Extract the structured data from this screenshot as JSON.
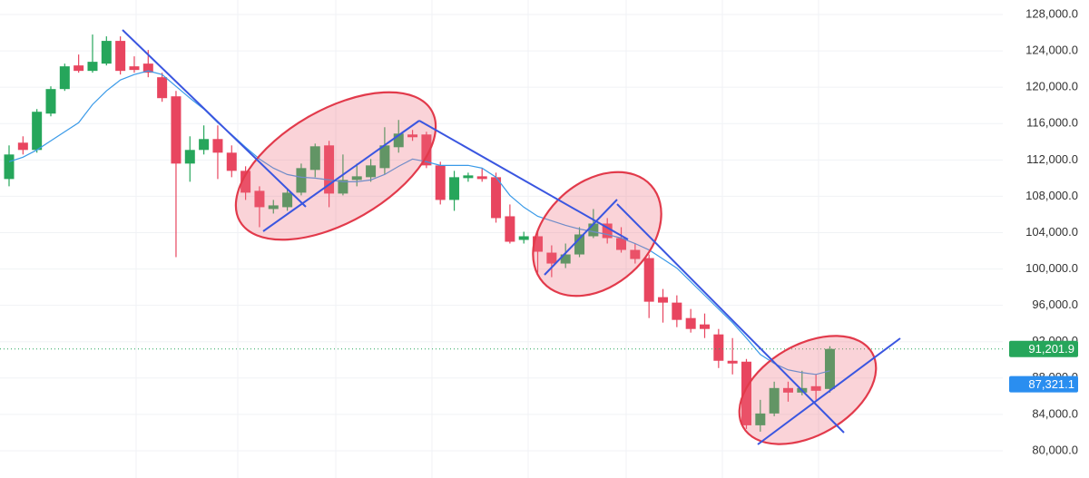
{
  "chart_data": {
    "type": "candlestick",
    "ylim": [
      77000,
      129600
    ],
    "yticks": [
      {
        "value": 80000,
        "label": "80,000.0"
      },
      {
        "value": 84000,
        "label": "84,000.0"
      },
      {
        "value": 88000,
        "label": "88,000.0"
      },
      {
        "value": 92000,
        "label": "92,000.0"
      },
      {
        "value": 96000,
        "label": "96,000.0"
      },
      {
        "value": 100000,
        "label": "100,000.0"
      },
      {
        "value": 104000,
        "label": "104,000.0"
      },
      {
        "value": 108000,
        "label": "108,000.0"
      },
      {
        "value": 112000,
        "label": "112,000.0"
      },
      {
        "value": 116000,
        "label": "116,000.0"
      },
      {
        "value": 120000,
        "label": "120,000.0"
      },
      {
        "value": 124000,
        "label": "124,000.0"
      },
      {
        "value": 128000,
        "label": "128,000.0"
      }
    ],
    "grid": true,
    "up_color": "#26a65b",
    "down_color": "#e8455f",
    "ma_color": "#3a9ae8",
    "open": [
      109900,
      113900,
      113100,
      117100,
      119800,
      122400,
      121800,
      122600,
      125100,
      122300,
      122600,
      121100,
      119000,
      111600,
      113100,
      114300,
      112800,
      110800,
      108600,
      106600,
      106800,
      108400,
      110900,
      113600,
      108300,
      109800,
      110100,
      111100,
      113400,
      114800,
      114800,
      111400,
      107600,
      110000,
      110200,
      110100,
      105800,
      103200,
      103600,
      101800,
      100600,
      101600,
      103600,
      105000,
      103400,
      102100,
      101200,
      96900,
      96300,
      94600,
      93900,
      92800,
      89900,
      89800,
      82800,
      84100,
      86900,
      86400,
      87100,
      86800
    ],
    "high": [
      113600,
      114600,
      117600,
      120100,
      122600,
      123600,
      125800,
      125600,
      125600,
      123400,
      124100,
      121600,
      119600,
      114600,
      115800,
      115800,
      113600,
      111300,
      109100,
      107600,
      108800,
      111600,
      113800,
      114100,
      112600,
      111600,
      112100,
      115600,
      116400,
      115300,
      115100,
      111800,
      110800,
      110600,
      111100,
      110600,
      107100,
      104100,
      104100,
      102600,
      102800,
      104600,
      106600,
      105600,
      104600,
      102800,
      101600,
      97800,
      97100,
      95600,
      95100,
      93400,
      92400,
      90100,
      85600,
      87600,
      87600,
      88800,
      88400,
      91500
    ],
    "low": [
      109100,
      112600,
      112800,
      116800,
      119600,
      121600,
      121600,
      122400,
      121400,
      121600,
      121100,
      118400,
      101300,
      109600,
      112600,
      109900,
      110100,
      107600,
      104600,
      106100,
      106400,
      108100,
      110100,
      106800,
      108100,
      109100,
      109600,
      110400,
      112800,
      114100,
      111100,
      107100,
      106400,
      109600,
      109600,
      105100,
      102800,
      102800,
      99600,
      99100,
      100100,
      101300,
      103400,
      102800,
      101800,
      100600,
      94600,
      94100,
      93600,
      93000,
      92400,
      89100,
      88400,
      82400,
      82100,
      83800,
      85400,
      86100,
      85600,
      86400
    ],
    "close": [
      112600,
      113100,
      117300,
      119800,
      122300,
      121800,
      122800,
      125100,
      121800,
      121900,
      121600,
      118800,
      111600,
      113100,
      114300,
      112800,
      110800,
      108400,
      106800,
      107000,
      108400,
      111100,
      113500,
      108300,
      109800,
      110200,
      111400,
      113600,
      114900,
      114500,
      111400,
      107600,
      110100,
      110300,
      109900,
      105600,
      103000,
      103600,
      101900,
      100600,
      101600,
      103800,
      105000,
      103400,
      102100,
      101100,
      96400,
      96300,
      94400,
      93400,
      93400,
      89900,
      89600,
      82800,
      84100,
      86900,
      86400,
      86900,
      86600,
      91200
    ],
    "ma": [
      111800,
      112300,
      113100,
      114100,
      115100,
      116100,
      118100,
      119600,
      120800,
      121400,
      121800,
      121400,
      120100,
      118800,
      117600,
      116100,
      114800,
      113400,
      112100,
      111100,
      110400,
      110100,
      110000,
      109800,
      109600,
      109600,
      109800,
      110400,
      111300,
      112100,
      111800,
      111400,
      111400,
      111400,
      111100,
      110100,
      108100,
      106800,
      105800,
      105300,
      104800,
      104400,
      104100,
      103800,
      103400,
      102800,
      102100,
      101100,
      100100,
      98600,
      97100,
      95600,
      94100,
      92400,
      90600,
      89600,
      88900,
      88600,
      88400,
      88800
    ],
    "price_lines": [
      {
        "value": 91201.9,
        "label": "91,201.9",
        "color": "#26a65b"
      },
      {
        "value": 87321.1,
        "label": "87,321.1",
        "color": "#2a8ef0"
      }
    ]
  }
}
